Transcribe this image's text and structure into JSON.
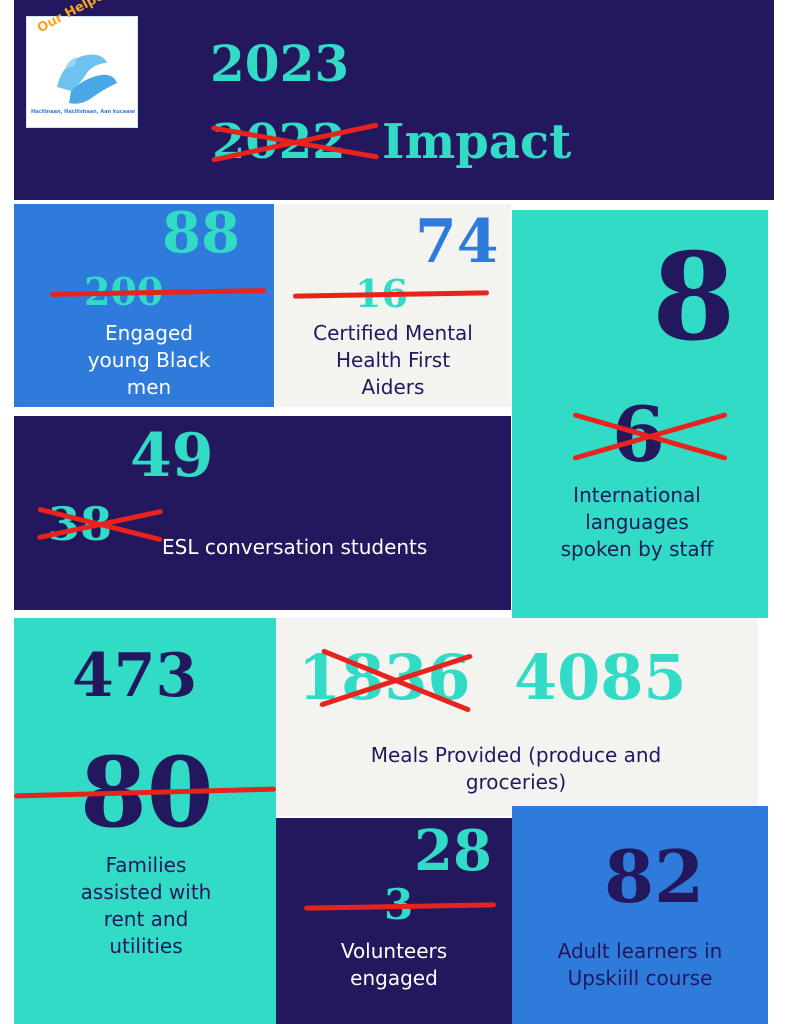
{
  "colors": {
    "navy": "#23185e",
    "teal": "#31dbc5",
    "blue": "#2f7bdc",
    "offwhite": "#f3f3ef",
    "strike_red": "#e8231e",
    "logo_orange": "#f5a623"
  },
  "header": {
    "logo": {
      "brand": "Our Helpers",
      "tagline": "Hacilinaan, Hacilishaan, Aan kucaawino",
      "icon": "helping-hands-icon"
    },
    "new_year": "2023",
    "old_year": "2022",
    "impact_word": "Impact"
  },
  "stats": {
    "young_men": {
      "new": "88",
      "old": "200",
      "label": "Engaged young Black men"
    },
    "first_aiders": {
      "new": "74",
      "old": "16",
      "label": "Certified Mental Health First Aiders"
    },
    "languages": {
      "new": "8",
      "old": "6",
      "label": "International languages spoken by staff"
    },
    "esl": {
      "new": "49",
      "old": "38",
      "label": "ESL conversation students"
    },
    "families": {
      "new": "473",
      "old": "80",
      "label": "Families assisted with rent and utilities"
    },
    "meals": {
      "old": "1836",
      "new": "4085",
      "label": "Meals Provided (produce and groceries)"
    },
    "volunteers": {
      "old": "3",
      "new": "28",
      "label": "Volunteers engaged"
    },
    "adult_learners": {
      "value": "82",
      "label": "Adult learners in Upskiill course"
    }
  }
}
